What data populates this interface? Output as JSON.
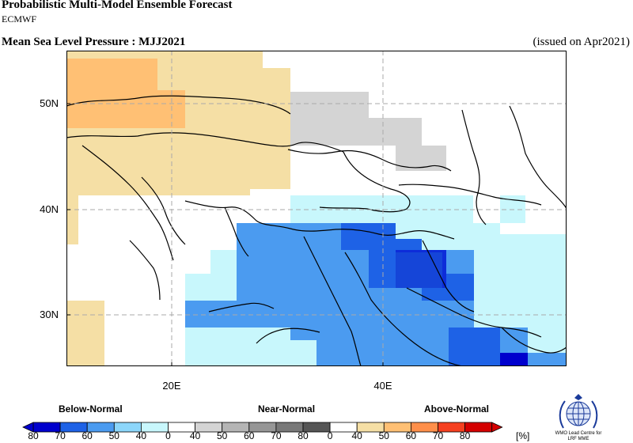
{
  "header": {
    "title": "Probabilistic Multi-Model Ensemble Forecast",
    "subtitle": "ECMWF",
    "field": "Mean Sea Level Pressure : MJJ2021",
    "issued": "(issued on Apr2021)"
  },
  "map": {
    "lat_labels": [
      "50N",
      "40N",
      "30N"
    ],
    "lon_labels": [
      "20E",
      "40E"
    ],
    "grid": "dashed"
  },
  "legend": {
    "categories": [
      "Below-Normal",
      "Near-Normal",
      "Above-Normal"
    ],
    "below_ticks": [
      "80",
      "70",
      "60",
      "50",
      "40",
      "0"
    ],
    "near_ticks": [
      "40",
      "50",
      "60",
      "70",
      "80",
      "0"
    ],
    "above_ticks": [
      "40",
      "50",
      "60",
      "70",
      "80"
    ],
    "unit": "[%]",
    "colors": {
      "below": [
        "#0000cd",
        "#1e62e6",
        "#4b9bf0",
        "#8cd6fa",
        "#c8f7fc",
        "#ffffff"
      ],
      "near": [
        "#d4d4d4",
        "#b5b5b5",
        "#969696",
        "#787878",
        "#555555",
        "#ffffff"
      ],
      "above": [
        "#f5dfa5",
        "#ffc074",
        "#ff8f4a",
        "#f54020",
        "#d40000"
      ]
    }
  },
  "logo": {
    "icon": "wmo-globe-icon",
    "text_line1": "WMO Lead Centre for",
    "text_line2": "LRF MME"
  }
}
